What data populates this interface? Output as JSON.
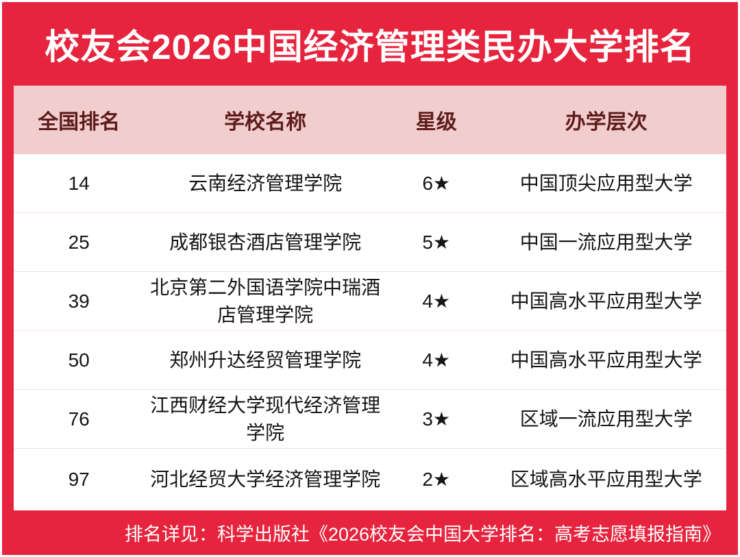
{
  "banner": {
    "title": "校友会2026中国经济管理类民办大学排名"
  },
  "colors": {
    "brand_red": "#e6243e",
    "header_pink": "#f2cdce",
    "header_text_maroon": "#5e1c1c",
    "body_text": "#151515",
    "row_divider": "#f6e0e1",
    "white": "#ffffff"
  },
  "table": {
    "columns": [
      {
        "key": "rank",
        "label": "全国排名"
      },
      {
        "key": "name",
        "label": "学校名称"
      },
      {
        "key": "stars",
        "label": "星级"
      },
      {
        "key": "level",
        "label": "办学层次"
      }
    ],
    "rows": [
      {
        "rank": "14",
        "name": "云南经济管理学院",
        "stars": "6★",
        "level": "中国顶尖应用型大学"
      },
      {
        "rank": "25",
        "name": "成都银杏酒店管理学院",
        "stars": "5★",
        "level": "中国一流应用型大学"
      },
      {
        "rank": "39",
        "name": "北京第二外国语学院中瑞酒店管理学院",
        "stars": "4★",
        "level": "中国高水平应用型大学"
      },
      {
        "rank": "50",
        "name": "郑州升达经贸管理学院",
        "stars": "4★",
        "level": "中国高水平应用型大学"
      },
      {
        "rank": "76",
        "name": "江西财经大学现代经济管理学院",
        "stars": "3★",
        "level": "区域一流应用型大学"
      },
      {
        "rank": "97",
        "name": "河北经贸大学经济管理学院",
        "stars": "2★",
        "level": "区域高水平应用型大学"
      }
    ]
  },
  "footer": {
    "note": "排名详见：科学出版社《2026校友会中国大学排名：高考志愿填报指南》"
  }
}
